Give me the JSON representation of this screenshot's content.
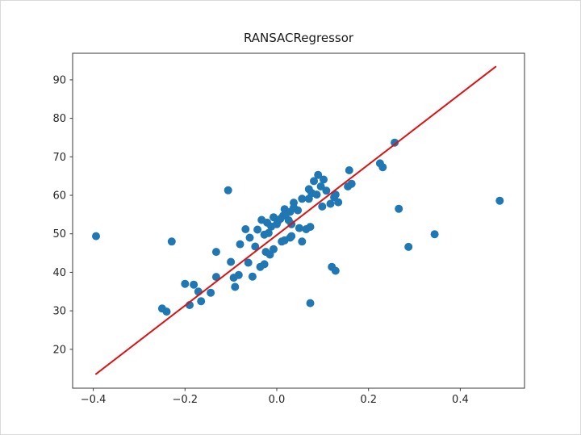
{
  "chart_data": {
    "type": "scatter",
    "title": "RANSACRegressor",
    "xlabel": "",
    "ylabel": "",
    "grid": false,
    "legend_position": "none",
    "xlim": [
      -0.445,
      0.54
    ],
    "ylim": [
      9.9,
      96.9
    ],
    "x_ticks": [
      -0.4,
      -0.2,
      0.0,
      0.2,
      0.4
    ],
    "x_tick_labels": [
      "−0.4",
      "−0.2",
      "0.0",
      "0.2",
      "0.4"
    ],
    "y_ticks": [
      20,
      30,
      40,
      50,
      60,
      70,
      80,
      90
    ],
    "y_tick_labels": [
      "20",
      "30",
      "40",
      "50",
      "60",
      "70",
      "80",
      "90"
    ],
    "colors": {
      "scatter": "#1f77b4",
      "line": "#e01010",
      "text": "#262626",
      "spine": "#3a3a3a"
    },
    "series": [
      {
        "name": "data-points",
        "type": "scatter",
        "color": "#1f77b4",
        "marker_diameter_px": 10,
        "points": [
          [
            -0.394,
            49.4
          ],
          [
            -0.229,
            48.0
          ],
          [
            -0.132,
            45.3
          ],
          [
            -0.106,
            61.3
          ],
          [
            -0.25,
            30.6
          ],
          [
            -0.24,
            29.8
          ],
          [
            -0.19,
            31.5
          ],
          [
            -0.165,
            32.5
          ],
          [
            -0.144,
            34.7
          ],
          [
            -0.171,
            35.0
          ],
          [
            -0.2,
            37.0
          ],
          [
            -0.181,
            36.8
          ],
          [
            -0.132,
            38.8
          ],
          [
            -0.1,
            42.7
          ],
          [
            -0.083,
            39.3
          ],
          [
            -0.094,
            38.6
          ],
          [
            -0.053,
            38.9
          ],
          [
            -0.091,
            36.2
          ],
          [
            -0.062,
            42.5
          ],
          [
            -0.036,
            41.4
          ],
          [
            -0.027,
            42.1
          ],
          [
            -0.08,
            47.3
          ],
          [
            -0.059,
            49.0
          ],
          [
            -0.068,
            51.2
          ],
          [
            -0.042,
            51.1
          ],
          [
            -0.047,
            46.7
          ],
          [
            -0.024,
            45.3
          ],
          [
            -0.015,
            44.6
          ],
          [
            -0.007,
            46.0
          ],
          [
            -0.033,
            53.6
          ],
          [
            -0.021,
            52.9
          ],
          [
            -0.012,
            51.9
          ],
          [
            -0.027,
            49.8
          ],
          [
            -0.018,
            50.2
          ],
          [
            0.0,
            52.5
          ],
          [
            0.002,
            53.2
          ],
          [
            0.014,
            54.7
          ],
          [
            -0.007,
            54.3
          ],
          [
            0.017,
            56.4
          ],
          [
            0.029,
            55.7
          ],
          [
            0.029,
            49.0
          ],
          [
            0.017,
            48.3
          ],
          [
            0.032,
            52.5
          ],
          [
            0.032,
            49.4
          ],
          [
            0.049,
            51.5
          ],
          [
            0.055,
            48.0
          ],
          [
            0.011,
            48.0
          ],
          [
            0.037,
            58.1
          ],
          [
            0.055,
            59.1
          ],
          [
            0.064,
            51.2
          ],
          [
            0.073,
            51.8
          ],
          [
            0.07,
            59.1
          ],
          [
            0.07,
            61.6
          ],
          [
            0.081,
            63.7
          ],
          [
            0.096,
            62.3
          ],
          [
            0.087,
            60.2
          ],
          [
            0.108,
            61.2
          ],
          [
            0.117,
            57.8
          ],
          [
            0.099,
            57.1
          ],
          [
            0.125,
            59.5
          ],
          [
            0.09,
            65.3
          ],
          [
            0.102,
            64.1
          ],
          [
            0.158,
            66.5
          ],
          [
            0.155,
            62.3
          ],
          [
            0.163,
            63.0
          ],
          [
            0.134,
            58.2
          ],
          [
            0.257,
            73.7
          ],
          [
            0.225,
            68.3
          ],
          [
            0.231,
            67.3
          ],
          [
            0.266,
            56.5
          ],
          [
            0.486,
            58.6
          ],
          [
            0.344,
            49.9
          ],
          [
            0.287,
            46.6
          ],
          [
            0.12,
            41.4
          ],
          [
            0.128,
            40.4
          ],
          [
            0.073,
            32.0
          ],
          [
            0.128,
            60.2
          ],
          [
            0.008,
            53.9
          ],
          [
            0.026,
            53.5
          ],
          [
            0.02,
            55.2
          ],
          [
            0.037,
            56.8
          ],
          [
            0.046,
            56.1
          ],
          [
            0.076,
            60.6
          ]
        ]
      },
      {
        "name": "ransac-fit-line",
        "type": "line",
        "color": "#e01010",
        "stroke_width_px": 2,
        "x": [
          -0.394,
          0.477
        ],
        "y": [
          13.6,
          93.4
        ],
        "slope": 91.6,
        "intercept": 49.7
      }
    ]
  }
}
